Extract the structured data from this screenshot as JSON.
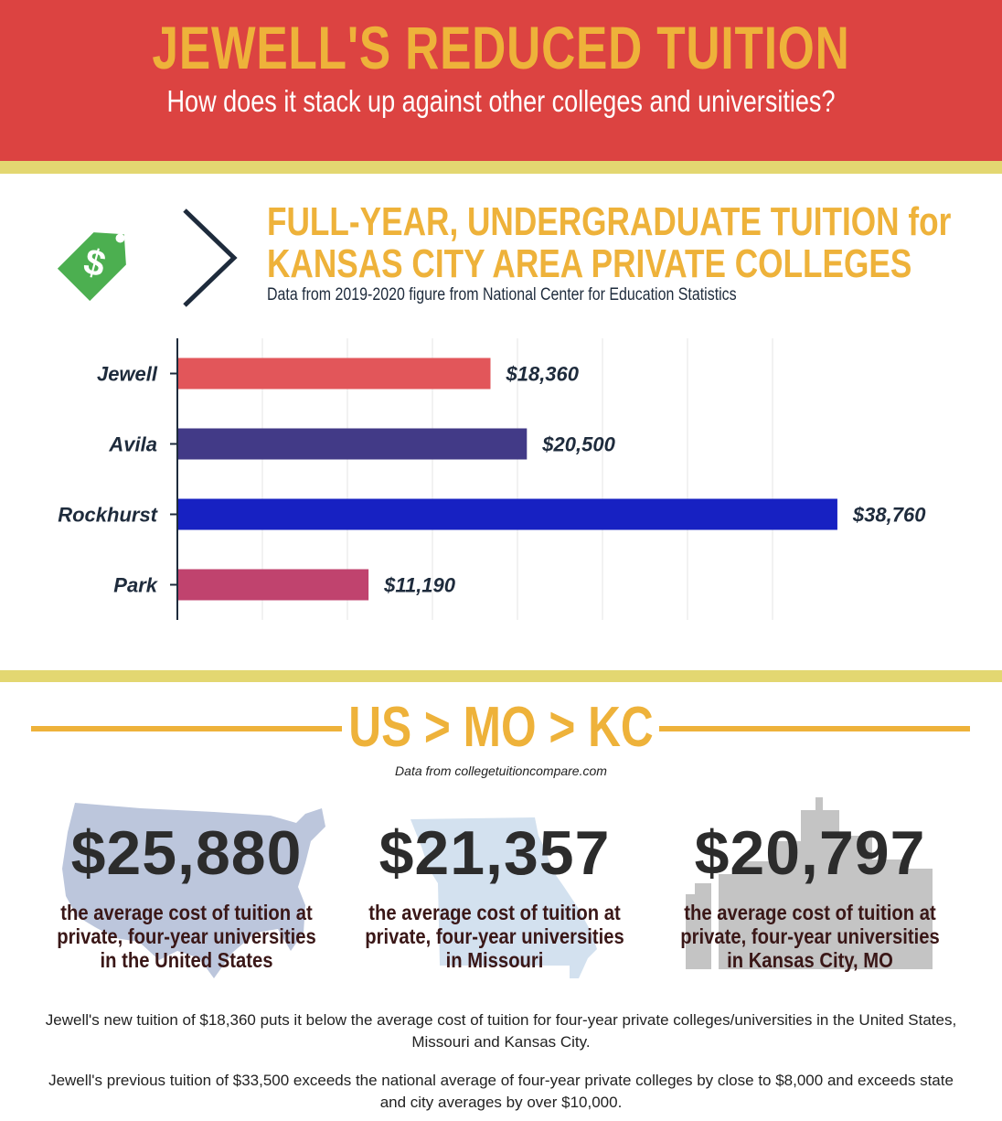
{
  "header": {
    "title": "JEWELL'S REDUCED TUITION",
    "subtitle": "How does it stack up against other colleges and universities?"
  },
  "section1": {
    "title_line1": "FULL-YEAR, UNDERGRADUATE TUITION for",
    "title_line2": "KANSAS CITY AREA PRIVATE COLLEGES",
    "source": "Data from 2019-2020 figure from National Center for Education Statistics",
    "icon": "price-tag-dollar-icon",
    "icon_color": "#4caf50"
  },
  "chart_data": {
    "type": "bar",
    "orientation": "horizontal",
    "categories": [
      "Jewell",
      "Avila",
      "Rockhurst",
      "Park"
    ],
    "values": [
      18360,
      20500,
      38760,
      11190
    ],
    "value_labels": [
      "$18,360",
      "$20,500",
      "$38,760",
      "$11,190"
    ],
    "colors": [
      "#e2565a",
      "#423a87",
      "#1721c2",
      "#c0436e"
    ],
    "xlim": [
      0,
      45000
    ],
    "grid": true,
    "title": "",
    "xlabel": "",
    "ylabel": ""
  },
  "section2": {
    "title": "US > MO > KC",
    "source": "Data from collegetuitioncompare.com",
    "stats": [
      {
        "value": "$25,880",
        "text": "the average cost of tuition at private, four-year universities in the United States",
        "backdrop": "usa-map-icon"
      },
      {
        "value": "$21,357",
        "text": "the average cost of tuition at private, four-year universities in Missouri",
        "backdrop": "missouri-map-icon"
      },
      {
        "value": "$20,797",
        "text": "the average cost of tuition at private, four-year universities in Kansas City, MO",
        "backdrop": "city-skyline-icon"
      }
    ]
  },
  "notes": [
    "Jewell's new tuition of $18,360 puts it below the average cost of tuition for four-year private colleges/universities in the United States, Missouri and Kansas City.",
    "Jewell's previous tuition of $33,500 exceeds the national average of four-year private colleges by close to $8,000 and exceeds state and city averages by over $10,000."
  ],
  "colors": {
    "header_red": "#dc4341",
    "accent_gold": "#eeb23a",
    "stripe_yellow": "#e3d771",
    "navy": "#1e2b3c"
  }
}
